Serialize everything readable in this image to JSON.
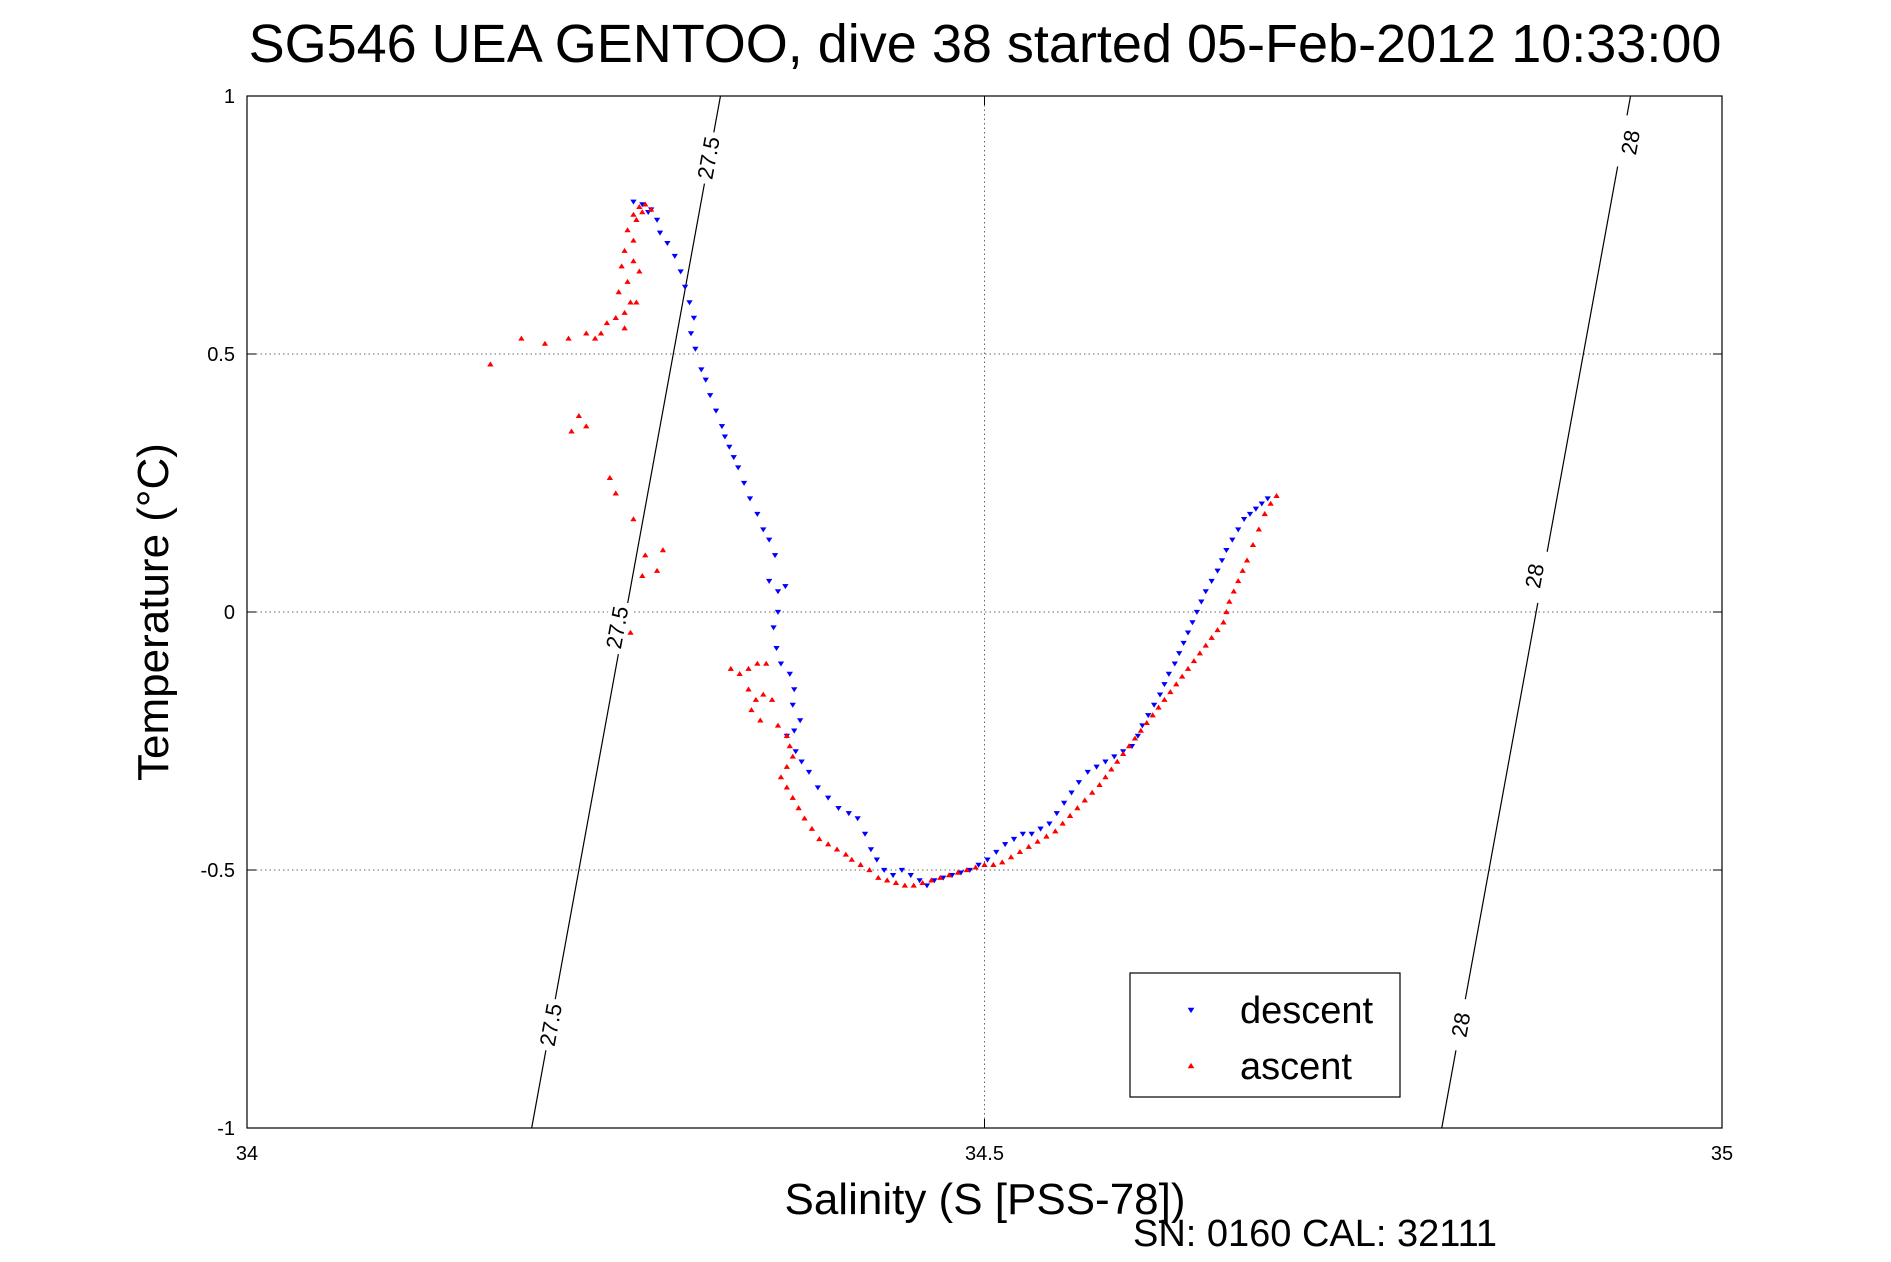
{
  "chart_data": {
    "type": "scatter",
    "title": "SG546 UEA GENTOO, dive 38 started 05-Feb-2012 10:33:00",
    "xlabel": "Salinity (S [PSS-78])",
    "ylabel": "Temperature (°C)",
    "xlim": [
      34,
      35
    ],
    "ylim": [
      -1,
      1
    ],
    "x_ticks": [
      {
        "value": 34,
        "label": "34"
      },
      {
        "value": 34.5,
        "label": "34.5"
      },
      {
        "value": 35,
        "label": "35"
      }
    ],
    "y_ticks": [
      {
        "value": -1,
        "label": "-1"
      },
      {
        "value": -0.5,
        "label": "-0.5"
      },
      {
        "value": 0,
        "label": "0"
      },
      {
        "value": 0.5,
        "label": "0.5"
      },
      {
        "value": 1,
        "label": "1"
      }
    ],
    "grid": true,
    "legend_position": "bottom-right",
    "footer": "SN: 0160  CAL: 32111",
    "density_contours": [
      {
        "label": "27.5",
        "line": [
          [
            34.193,
            -1.0
          ],
          [
            34.321,
            1.0
          ]
        ],
        "labels_at": [
          [
            34.206,
            -0.8
          ],
          [
            34.251,
            -0.03
          ],
          [
            34.313,
            0.88
          ]
        ]
      },
      {
        "label": "28",
        "line": [
          [
            34.81,
            -1.0
          ],
          [
            34.938,
            1.0
          ]
        ],
        "labels_at": [
          [
            34.823,
            -0.8
          ],
          [
            34.873,
            0.07
          ],
          [
            34.938,
            0.91
          ]
        ]
      }
    ],
    "series": [
      {
        "name": "descent",
        "color": "#0000ff",
        "marker": "triangle-down",
        "points": [
          [
            34.262,
            0.795
          ],
          [
            34.268,
            0.79
          ],
          [
            34.274,
            0.78
          ],
          [
            34.278,
            0.76
          ],
          [
            34.272,
            0.775
          ],
          [
            34.28,
            0.735
          ],
          [
            34.285,
            0.715
          ],
          [
            34.29,
            0.69
          ],
          [
            34.294,
            0.66
          ],
          [
            34.297,
            0.63
          ],
          [
            34.3,
            0.6
          ],
          [
            34.303,
            0.57
          ],
          [
            34.301,
            0.54
          ],
          [
            34.304,
            0.51
          ],
          [
            34.308,
            0.47
          ],
          [
            34.311,
            0.45
          ],
          [
            34.314,
            0.42
          ],
          [
            34.318,
            0.39
          ],
          [
            34.322,
            0.36
          ],
          [
            34.324,
            0.34
          ],
          [
            34.327,
            0.32
          ],
          [
            34.33,
            0.3
          ],
          [
            34.333,
            0.28
          ],
          [
            34.337,
            0.25
          ],
          [
            34.341,
            0.22
          ],
          [
            34.346,
            0.19
          ],
          [
            34.35,
            0.16
          ],
          [
            34.354,
            0.14
          ],
          [
            34.358,
            0.11
          ],
          [
            34.354,
            0.06
          ],
          [
            34.36,
            0.04
          ],
          [
            34.365,
            0.05
          ],
          [
            34.36,
            0.0
          ],
          [
            34.357,
            -0.03
          ],
          [
            34.359,
            -0.07
          ],
          [
            34.362,
            -0.1
          ],
          [
            34.368,
            -0.12
          ],
          [
            34.371,
            -0.15
          ],
          [
            34.37,
            -0.18
          ],
          [
            34.375,
            -0.21
          ],
          [
            34.371,
            -0.23
          ],
          [
            34.366,
            -0.24
          ],
          [
            34.372,
            -0.27
          ],
          [
            34.376,
            -0.29
          ],
          [
            34.381,
            -0.31
          ],
          [
            34.387,
            -0.34
          ],
          [
            34.394,
            -0.36
          ],
          [
            34.401,
            -0.38
          ],
          [
            34.408,
            -0.39
          ],
          [
            34.414,
            -0.4
          ],
          [
            34.419,
            -0.43
          ],
          [
            34.423,
            -0.46
          ],
          [
            34.427,
            -0.48
          ],
          [
            34.432,
            -0.5
          ],
          [
            34.438,
            -0.51
          ],
          [
            34.444,
            -0.5
          ],
          [
            34.45,
            -0.51
          ],
          [
            34.456,
            -0.52
          ],
          [
            34.461,
            -0.53
          ],
          [
            34.466,
            -0.52
          ],
          [
            34.472,
            -0.515
          ],
          [
            34.478,
            -0.51
          ],
          [
            34.484,
            -0.505
          ],
          [
            34.49,
            -0.5
          ],
          [
            34.496,
            -0.49
          ],
          [
            34.502,
            -0.48
          ],
          [
            34.508,
            -0.465
          ],
          [
            34.514,
            -0.45
          ],
          [
            34.52,
            -0.44
          ],
          [
            34.526,
            -0.43
          ],
          [
            34.532,
            -0.43
          ],
          [
            34.538,
            -0.42
          ],
          [
            34.544,
            -0.41
          ],
          [
            34.549,
            -0.39
          ],
          [
            34.554,
            -0.37
          ],
          [
            34.559,
            -0.35
          ],
          [
            34.564,
            -0.33
          ],
          [
            34.57,
            -0.31
          ],
          [
            34.576,
            -0.3
          ],
          [
            34.582,
            -0.29
          ],
          [
            34.588,
            -0.28
          ],
          [
            34.594,
            -0.27
          ],
          [
            34.6,
            -0.26
          ],
          [
            34.604,
            -0.24
          ],
          [
            34.607,
            -0.22
          ],
          [
            34.611,
            -0.2
          ],
          [
            34.615,
            -0.18
          ],
          [
            34.619,
            -0.16
          ],
          [
            34.622,
            -0.14
          ],
          [
            34.625,
            -0.12
          ],
          [
            34.629,
            -0.1
          ],
          [
            34.632,
            -0.08
          ],
          [
            34.635,
            -0.06
          ],
          [
            34.638,
            -0.04
          ],
          [
            34.641,
            -0.02
          ],
          [
            34.644,
            0.0
          ],
          [
            34.647,
            0.02
          ],
          [
            34.65,
            0.04
          ],
          [
            34.654,
            0.06
          ],
          [
            34.658,
            0.08
          ],
          [
            34.661,
            0.1
          ],
          [
            34.664,
            0.12
          ],
          [
            34.668,
            0.14
          ],
          [
            34.672,
            0.16
          ],
          [
            34.676,
            0.18
          ],
          [
            34.68,
            0.19
          ],
          [
            34.684,
            0.2
          ],
          [
            34.688,
            0.21
          ],
          [
            34.692,
            0.22
          ]
        ]
      },
      {
        "name": "ascent",
        "color": "#ff0000",
        "marker": "triangle-up",
        "points": [
          [
            34.262,
            0.77
          ],
          [
            34.266,
            0.785
          ],
          [
            34.27,
            0.79
          ],
          [
            34.274,
            0.78
          ],
          [
            34.268,
            0.775
          ],
          [
            34.264,
            0.76
          ],
          [
            34.258,
            0.74
          ],
          [
            34.262,
            0.72
          ],
          [
            34.256,
            0.7
          ],
          [
            34.262,
            0.68
          ],
          [
            34.254,
            0.67
          ],
          [
            34.266,
            0.66
          ],
          [
            34.258,
            0.64
          ],
          [
            34.252,
            0.62
          ],
          [
            34.26,
            0.6
          ],
          [
            34.264,
            0.6
          ],
          [
            34.256,
            0.58
          ],
          [
            34.25,
            0.57
          ],
          [
            34.244,
            0.56
          ],
          [
            34.256,
            0.55
          ],
          [
            34.24,
            0.54
          ],
          [
            34.236,
            0.53
          ],
          [
            34.23,
            0.54
          ],
          [
            34.218,
            0.53
          ],
          [
            34.202,
            0.52
          ],
          [
            34.186,
            0.53
          ],
          [
            34.165,
            0.48
          ],
          [
            34.225,
            0.38
          ],
          [
            34.23,
            0.36
          ],
          [
            34.22,
            0.35
          ],
          [
            34.246,
            0.26
          ],
          [
            34.25,
            0.23
          ],
          [
            34.262,
            0.18
          ],
          [
            34.282,
            0.12
          ],
          [
            34.27,
            0.11
          ],
          [
            34.278,
            0.08
          ],
          [
            34.268,
            0.07
          ],
          [
            34.26,
            -0.04
          ],
          [
            34.328,
            -0.11
          ],
          [
            34.334,
            -0.12
          ],
          [
            34.34,
            -0.11
          ],
          [
            34.346,
            -0.1
          ],
          [
            34.352,
            -0.1
          ],
          [
            34.34,
            -0.15
          ],
          [
            34.345,
            -0.17
          ],
          [
            34.35,
            -0.16
          ],
          [
            34.356,
            -0.17
          ],
          [
            34.342,
            -0.19
          ],
          [
            34.348,
            -0.21
          ],
          [
            34.36,
            -0.22
          ],
          [
            34.366,
            -0.24
          ],
          [
            34.368,
            -0.26
          ],
          [
            34.37,
            -0.28
          ],
          [
            34.366,
            -0.3
          ],
          [
            34.362,
            -0.32
          ],
          [
            34.366,
            -0.34
          ],
          [
            34.37,
            -0.36
          ],
          [
            34.374,
            -0.38
          ],
          [
            34.378,
            -0.4
          ],
          [
            34.383,
            -0.42
          ],
          [
            34.388,
            -0.44
          ],
          [
            34.394,
            -0.45
          ],
          [
            34.4,
            -0.46
          ],
          [
            34.406,
            -0.47
          ],
          [
            34.41,
            -0.48
          ],
          [
            34.416,
            -0.49
          ],
          [
            34.422,
            -0.5
          ],
          [
            34.428,
            -0.515
          ],
          [
            34.434,
            -0.52
          ],
          [
            34.44,
            -0.525
          ],
          [
            34.446,
            -0.53
          ],
          [
            34.452,
            -0.53
          ],
          [
            34.458,
            -0.525
          ],
          [
            34.464,
            -0.52
          ],
          [
            34.47,
            -0.515
          ],
          [
            34.476,
            -0.51
          ],
          [
            34.482,
            -0.505
          ],
          [
            34.488,
            -0.5
          ],
          [
            34.494,
            -0.495
          ],
          [
            34.5,
            -0.49
          ],
          [
            34.506,
            -0.49
          ],
          [
            34.512,
            -0.485
          ],
          [
            34.518,
            -0.475
          ],
          [
            34.524,
            -0.465
          ],
          [
            34.53,
            -0.455
          ],
          [
            34.536,
            -0.445
          ],
          [
            34.542,
            -0.435
          ],
          [
            34.548,
            -0.425
          ],
          [
            34.553,
            -0.41
          ],
          [
            34.558,
            -0.395
          ],
          [
            34.563,
            -0.38
          ],
          [
            34.568,
            -0.365
          ],
          [
            34.573,
            -0.35
          ],
          [
            34.578,
            -0.335
          ],
          [
            34.582,
            -0.32
          ],
          [
            34.586,
            -0.305
          ],
          [
            34.59,
            -0.29
          ],
          [
            34.594,
            -0.275
          ],
          [
            34.598,
            -0.26
          ],
          [
            34.602,
            -0.245
          ],
          [
            34.606,
            -0.23
          ],
          [
            34.61,
            -0.215
          ],
          [
            34.614,
            -0.2
          ],
          [
            34.618,
            -0.185
          ],
          [
            34.622,
            -0.17
          ],
          [
            34.626,
            -0.155
          ],
          [
            34.63,
            -0.14
          ],
          [
            34.634,
            -0.125
          ],
          [
            34.638,
            -0.11
          ],
          [
            34.642,
            -0.095
          ],
          [
            34.646,
            -0.08
          ],
          [
            34.65,
            -0.065
          ],
          [
            34.654,
            -0.05
          ],
          [
            34.658,
            -0.035
          ],
          [
            34.662,
            -0.02
          ],
          [
            34.664,
            0.0
          ],
          [
            34.666,
            0.02
          ],
          [
            34.669,
            0.04
          ],
          [
            34.672,
            0.06
          ],
          [
            34.675,
            0.08
          ],
          [
            34.678,
            0.1
          ],
          [
            34.682,
            0.13
          ],
          [
            34.686,
            0.16
          ],
          [
            34.69,
            0.19
          ],
          [
            34.694,
            0.21
          ],
          [
            34.698,
            0.225
          ]
        ]
      }
    ]
  }
}
